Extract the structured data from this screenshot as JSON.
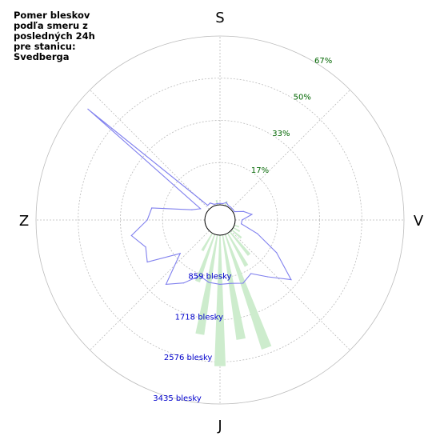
{
  "title": "Pomer bleskov\npodľa smeru z\nposledných 24h\npre stanicu:\nSvedberga",
  "compass": {
    "north": "S",
    "east": "V",
    "south": "J",
    "west": "Z"
  },
  "colors": {
    "count_line": "#8080ee",
    "percent_fill": "#cdeccd",
    "grid": "#bbbbbb",
    "percent_label": "#006600",
    "count_label": "#0000cc"
  },
  "chart_data": {
    "type": "polar",
    "direction_step_deg": 10,
    "directions_deg": [
      0,
      10,
      20,
      30,
      40,
      50,
      60,
      70,
      80,
      90,
      100,
      110,
      120,
      130,
      140,
      150,
      160,
      170,
      180,
      190,
      200,
      210,
      220,
      230,
      240,
      250,
      260,
      270,
      280,
      290,
      300,
      310,
      320,
      330,
      340,
      350
    ],
    "rings_percent": [
      17,
      33,
      50,
      67
    ],
    "ring_labels_percent": [
      "17%",
      "33%",
      "50%",
      "67%"
    ],
    "rings_count": [
      859,
      1718,
      2576,
      3435
    ],
    "ring_labels_count": [
      "859 blesky",
      "1718 blesky",
      "2576 blesky",
      "3435 blesky"
    ],
    "series": [
      {
        "unit": "blesky",
        "values": [
          30,
          30,
          70,
          30,
          30,
          30,
          30,
          200,
          350,
          140,
          130,
          500,
          1020,
          1580,
          1200,
          950,
          1060,
          1000,
          1000,
          980,
          900,
          1170,
          1400,
          750,
          1400,
          1300,
          1520,
          1170,
          1100,
          300,
          150,
          3200,
          80,
          90,
          30,
          30
        ]
      },
      {
        "unit": "%",
        "values": [
          0,
          0,
          2,
          0,
          0,
          0,
          0,
          0,
          0,
          0,
          0,
          2,
          3,
          5,
          12,
          15,
          48,
          42,
          52,
          40,
          20,
          8,
          0,
          0,
          0,
          0,
          0,
          0,
          0,
          0,
          0,
          0,
          0,
          0,
          0,
          2
        ]
      }
    ]
  }
}
